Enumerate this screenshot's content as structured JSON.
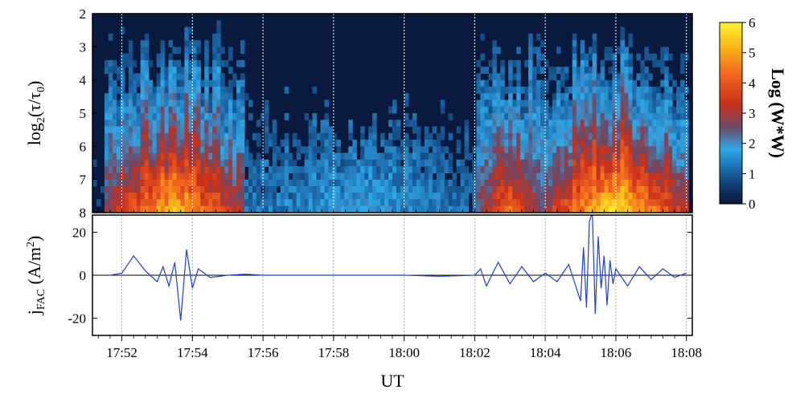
{
  "chart_data": [
    {
      "type": "heatmap",
      "panel": "wavelet spectrogram",
      "ylabel": {
        "base": "log",
        "sub1": "2",
        "mid": "(τ/τ",
        "sub2": "0",
        "end": ")"
      },
      "y_ticks": [
        "2",
        "3",
        "4",
        "5",
        "6",
        "7",
        "8"
      ],
      "ylim": [
        2,
        8
      ],
      "y_inverted": true,
      "x_range_minutes": [
        17.85,
        18.133
      ],
      "colorbar": {
        "label": "Log (W*W)",
        "ticks": [
          "0",
          "1",
          "2",
          "3",
          "4",
          "5",
          "6"
        ],
        "range": [
          0,
          6
        ],
        "colors": [
          "#0a1a3e",
          "#1a5f9e",
          "#30a8e8",
          "#6a4a6a",
          "#c8301a",
          "#f06020",
          "#f8b018",
          "#fff030"
        ]
      },
      "activity_bands": [
        {
          "start": "17:51:30",
          "end": "17:55:30",
          "peak_log_power": 5.5
        },
        {
          "start": "17:55:30",
          "end": "18:02:00",
          "peak_log_power": 1.8
        },
        {
          "start": "18:02:00",
          "end": "18:04:00",
          "peak_log_power": 4.5
        },
        {
          "start": "18:04:00",
          "end": "18:08:00",
          "peak_log_power": 6.0
        }
      ]
    },
    {
      "type": "line",
      "panel": "field-aligned current",
      "ylabel": {
        "base": "j",
        "sub": "FAC",
        "units": " (A/m",
        "sup": "2",
        "close": ")"
      },
      "y_ticks": [
        "20",
        "0",
        "-20"
      ],
      "ylim": [
        -28,
        28
      ],
      "xlabel": "UT",
      "x_ticks": [
        "17:52",
        "17:54",
        "17:56",
        "17:58",
        "18:00",
        "18:02",
        "18:04",
        "18:06",
        "18:08"
      ],
      "line_color": "#1c3fd6",
      "series": [
        {
          "x": [
            "17:51:40",
            "17:52:00",
            "17:52:20",
            "17:52:40",
            "17:53:00",
            "17:53:10",
            "17:53:20",
            "17:53:30",
            "17:53:40",
            "17:53:50",
            "17:54:00",
            "17:54:10",
            "17:54:30",
            "17:55:00",
            "17:55:30",
            "17:56:00",
            "17:58:00",
            "18:00:00",
            "18:01:00",
            "18:02:00",
            "18:02:10",
            "18:02:20",
            "18:02:40",
            "18:03:00",
            "18:03:20",
            "18:03:40",
            "18:04:00",
            "18:04:20",
            "18:04:40",
            "18:05:00",
            "18:05:05",
            "18:05:10",
            "18:05:15",
            "18:05:20",
            "18:05:25",
            "18:05:30",
            "18:05:35",
            "18:05:40",
            "18:05:45",
            "18:05:50",
            "18:05:55",
            "18:06:00",
            "18:06:20",
            "18:06:40",
            "18:07:00",
            "18:07:20",
            "18:07:40",
            "18:08:00"
          ],
          "values": [
            0,
            1,
            9,
            2,
            -3,
            4,
            -5,
            6,
            -21,
            12,
            -6,
            3,
            -1,
            0,
            0.5,
            0,
            0,
            0,
            -0.5,
            0,
            3,
            -5,
            6,
            -4,
            4,
            -3,
            1,
            -3,
            5,
            -12,
            13,
            -15,
            25,
            29,
            -18,
            18,
            -6,
            9,
            -14,
            7,
            -4,
            3,
            -5,
            4,
            -2,
            3,
            -1,
            1
          ]
        }
      ]
    }
  ]
}
